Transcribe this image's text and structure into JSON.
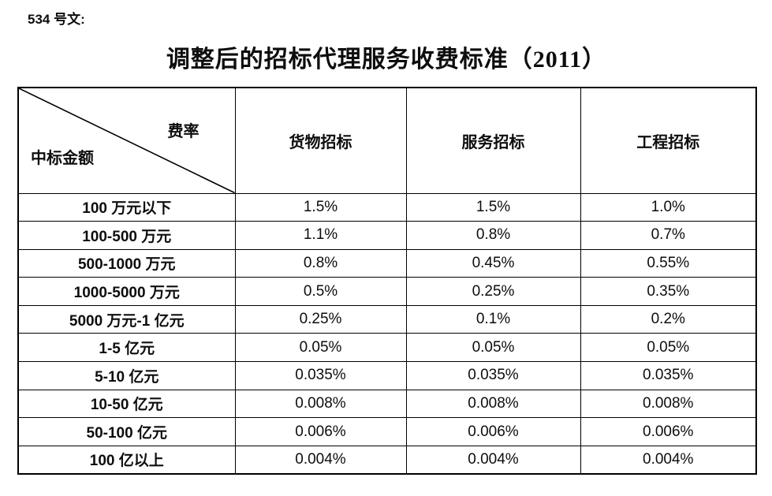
{
  "doc": {
    "ref_label": "534 号文:",
    "title": "调整后的招标代理服务收费标准（2011）"
  },
  "table": {
    "corner": {
      "top_right": "费率",
      "bottom_left": "中标金额"
    },
    "columns": [
      "货物招标",
      "服务招标",
      "工程招标"
    ],
    "rows": [
      {
        "label": "100 万元以下",
        "values": [
          "1.5%",
          "1.5%",
          "1.0%"
        ]
      },
      {
        "label": "100-500 万元",
        "values": [
          "1.1%",
          "0.8%",
          "0.7%"
        ]
      },
      {
        "label": "500-1000 万元",
        "values": [
          "0.8%",
          "0.45%",
          "0.55%"
        ]
      },
      {
        "label": "1000-5000 万元",
        "values": [
          "0.5%",
          "0.25%",
          "0.35%"
        ]
      },
      {
        "label": "5000 万元-1 亿元",
        "values": [
          "0.25%",
          "0.1%",
          "0.2%"
        ]
      },
      {
        "label": "1-5 亿元",
        "values": [
          "0.05%",
          "0.05%",
          "0.05%"
        ]
      },
      {
        "label": "5-10 亿元",
        "values": [
          "0.035%",
          "0.035%",
          "0.035%"
        ]
      },
      {
        "label": "10-50 亿元",
        "values": [
          "0.008%",
          "0.008%",
          "0.008%"
        ]
      },
      {
        "label": "50-100 亿元",
        "values": [
          "0.006%",
          "0.006%",
          "0.006%"
        ]
      },
      {
        "label": "100 亿以上",
        "values": [
          "0.004%",
          "0.004%",
          "0.004%"
        ]
      }
    ]
  },
  "colors": {
    "text": "#0d0d0d",
    "border": "#000000",
    "background": "#ffffff"
  }
}
